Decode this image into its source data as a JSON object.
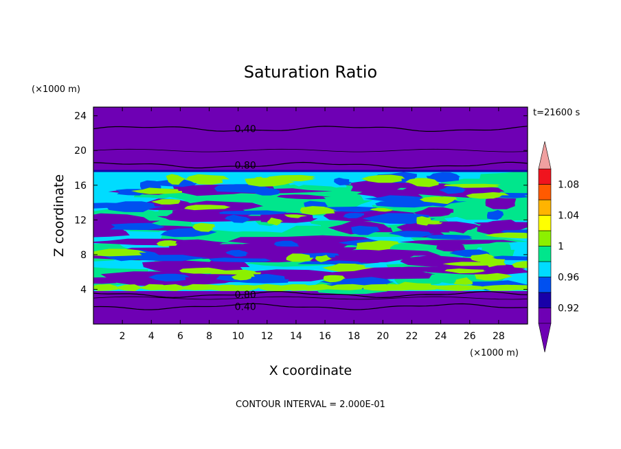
{
  "chart_data": {
    "type": "heatmap",
    "title": "Saturation Ratio",
    "xlabel": "X coordinate",
    "ylabel": "Z coordinate",
    "x_unit": "(×1000 m)",
    "y_unit": "(×1000 m)",
    "time_label": "t=21600 s",
    "footer": "CONTOUR INTERVAL = 2.000E-01",
    "xlim": [
      0,
      30
    ],
    "ylim": [
      0,
      25
    ],
    "x_ticks": [
      "2",
      "4",
      "6",
      "8",
      "10",
      "12",
      "14",
      "16",
      "18",
      "20",
      "22",
      "24",
      "26",
      "28"
    ],
    "y_ticks": [
      "4",
      "8",
      "12",
      "16",
      "20",
      "24"
    ],
    "x_tick_values": [
      2,
      4,
      6,
      8,
      10,
      12,
      14,
      16,
      18,
      20,
      22,
      24,
      26,
      28
    ],
    "y_tick_values": [
      4,
      8,
      12,
      16,
      20,
      24
    ],
    "colorbar": {
      "labels": [
        "0.92",
        "0.96",
        "1",
        "1.04",
        "1.08"
      ],
      "label_values": [
        0.92,
        0.96,
        1.0,
        1.04,
        1.08
      ],
      "levels": [
        0.9,
        0.92,
        0.94,
        0.96,
        0.98,
        1.0,
        1.02,
        1.04,
        1.06,
        1.08,
        1.1
      ],
      "colors": [
        "#6e00b4",
        "#1800a8",
        "#0050f0",
        "#00dcff",
        "#00e68c",
        "#8cf000",
        "#ffff00",
        "#ffb400",
        "#ff5a00",
        "#f0141e"
      ],
      "under_color": "#6e00b4",
      "over_color": "#f0a0a0",
      "extend": "both"
    },
    "contour_lines": [
      {
        "label": "0.40",
        "z_mean": 22.5
      },
      {
        "label": "0.80",
        "z_mean": 18.3
      },
      {
        "label": "0.80",
        "z_mean": 3.4
      },
      {
        "label": "0.40",
        "z_mean": 2.0
      }
    ],
    "regions": {
      "upper_dry_layer": {
        "z_range": [
          18.5,
          25
        ],
        "value": "< 0.90"
      },
      "turbulent_layer": {
        "z_range": [
          3.8,
          17.6
        ],
        "value_range": [
          0.9,
          1.02
        ]
      },
      "lower_dry_layer": {
        "z_range": [
          0,
          3.8
        ],
        "value": "< 0.90"
      }
    },
    "colors": {
      "background_fill": "#6e00b4",
      "contour_line": "#000000"
    }
  }
}
